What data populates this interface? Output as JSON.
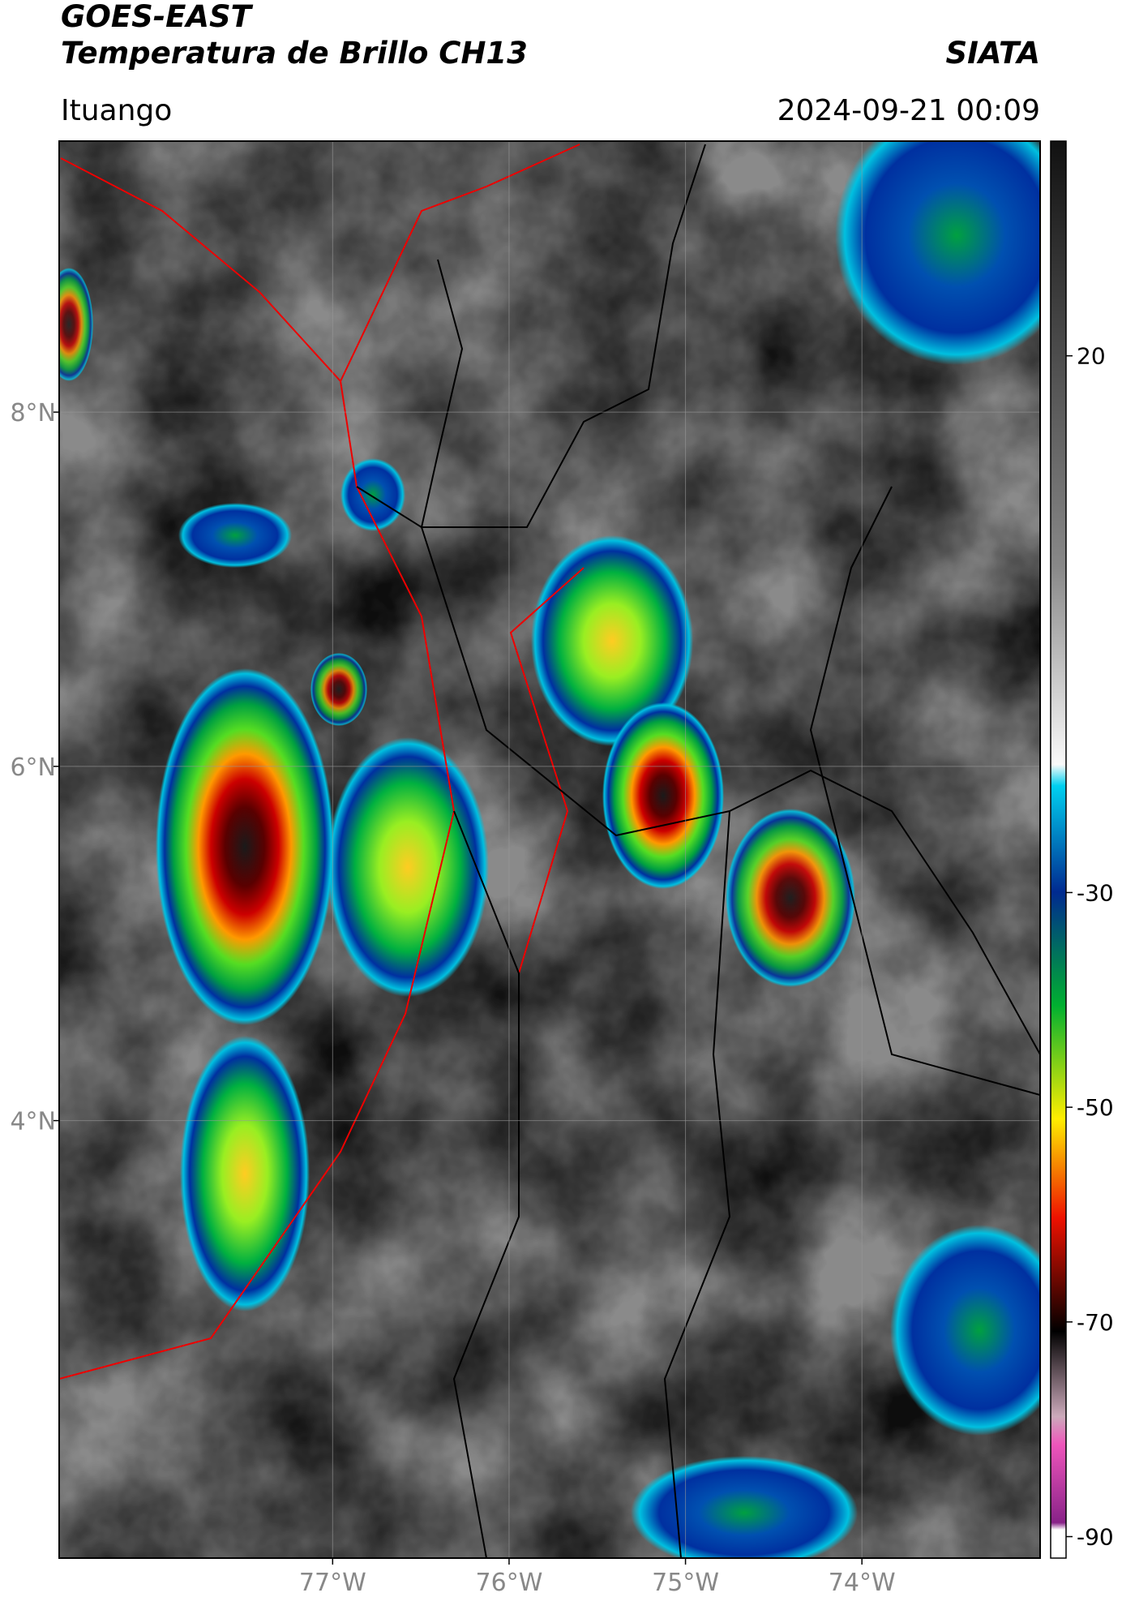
{
  "title": "GOES-EAST",
  "subtitle": "Temperatura de Brillo CH13",
  "source": "SIATA",
  "location": "Ituango",
  "datetime": "2024-09-21 00:09",
  "map": {
    "xlim": [
      -78.55,
      -72.99
    ],
    "ylim": [
      1.53,
      9.53
    ],
    "xticks": [
      {
        "value": -77,
        "label": "77°W"
      },
      {
        "value": -76,
        "label": "76°W"
      },
      {
        "value": -75,
        "label": "75°W"
      },
      {
        "value": -74,
        "label": "74°W"
      }
    ],
    "yticks": [
      {
        "value": 8,
        "label": "8°N"
      },
      {
        "value": 6,
        "label": "6°N"
      },
      {
        "value": 4,
        "label": "4°N"
      }
    ],
    "grid": true
  },
  "colorbar": {
    "lim": [
      -92,
      40
    ],
    "ticks": [
      20,
      -30,
      -50,
      -70,
      -90
    ]
  }
}
